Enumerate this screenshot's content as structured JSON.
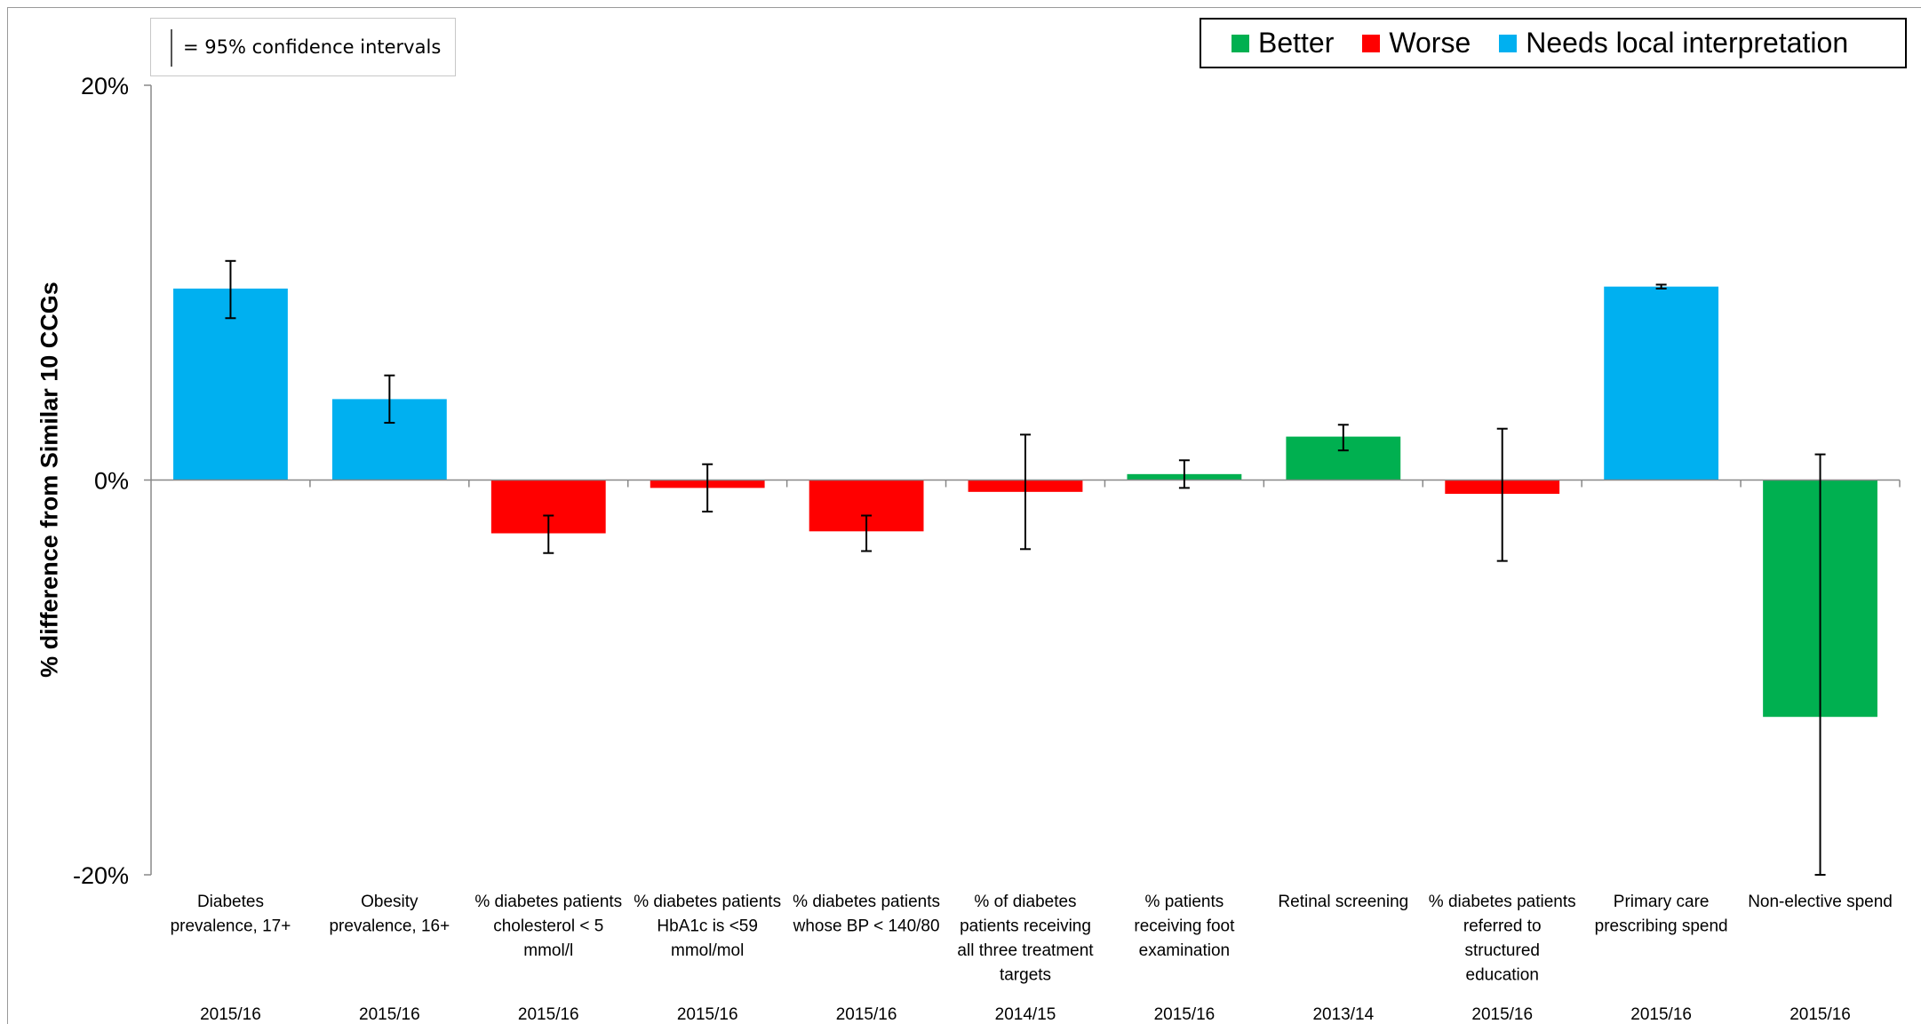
{
  "ci_note": "= 95% confidence intervals",
  "legend": [
    {
      "label": "Better",
      "color": "#00b050"
    },
    {
      "label": "Worse",
      "color": "#ff0000"
    },
    {
      "label": "Needs local interpretation",
      "color": "#00b0f0"
    }
  ],
  "chart_data": {
    "type": "bar",
    "title": "",
    "xlabel": "",
    "ylabel": "% difference from Similar 10 CCGs",
    "ylim": [
      -20,
      20
    ],
    "yticks": [
      {
        "value": 20,
        "label": "20%"
      },
      {
        "value": 0,
        "label": "0%"
      },
      {
        "value": -20,
        "label": "-20%"
      }
    ],
    "categories": [
      {
        "label": [
          "Diabetes",
          "prevalence, 17+"
        ],
        "period": "2015/16"
      },
      {
        "label": [
          "Obesity",
          "prevalence, 16+"
        ],
        "period": "2015/16"
      },
      {
        "label": [
          "% diabetes patients",
          "cholesterol < 5",
          "mmol/l"
        ],
        "period": "2015/16"
      },
      {
        "label": [
          "% diabetes patients",
          "HbA1c is <59",
          "mmol/mol"
        ],
        "period": "2015/16"
      },
      {
        "label": [
          "% diabetes patients",
          "whose BP < 140/80"
        ],
        "period": "2015/16"
      },
      {
        "label": [
          "% of diabetes",
          "patients receiving",
          "all three treatment",
          "targets"
        ],
        "period": "2014/15"
      },
      {
        "label": [
          "% patients",
          "receiving foot",
          "examination"
        ],
        "period": "2015/16"
      },
      {
        "label": [
          "Retinal screening"
        ],
        "period": "2013/14"
      },
      {
        "label": [
          "% diabetes patients",
          "referred to",
          "structured",
          "education"
        ],
        "period": "2015/16"
      },
      {
        "label": [
          "Primary care",
          "prescribing spend"
        ],
        "period": "2015/16"
      },
      {
        "label": [
          "Non-elective spend"
        ],
        "period": "2015/16"
      }
    ],
    "values": [
      9.7,
      4.1,
      -2.7,
      -0.4,
      -2.6,
      -0.6,
      0.3,
      2.2,
      -0.7,
      9.8,
      -12.0
    ],
    "ci_low": [
      8.2,
      2.9,
      -3.7,
      -1.6,
      -3.6,
      -3.5,
      -0.4,
      1.5,
      -4.1,
      9.7,
      -20.0
    ],
    "ci_high": [
      11.1,
      5.3,
      -1.8,
      0.8,
      -1.8,
      2.3,
      1.0,
      2.8,
      2.6,
      9.9,
      1.3
    ],
    "status": [
      "local",
      "local",
      "worse",
      "worse",
      "worse",
      "worse",
      "better",
      "better",
      "worse",
      "local",
      "better"
    ],
    "colors": {
      "better": "#00b050",
      "worse": "#ff0000",
      "local": "#00b0f0"
    },
    "grid": false
  }
}
